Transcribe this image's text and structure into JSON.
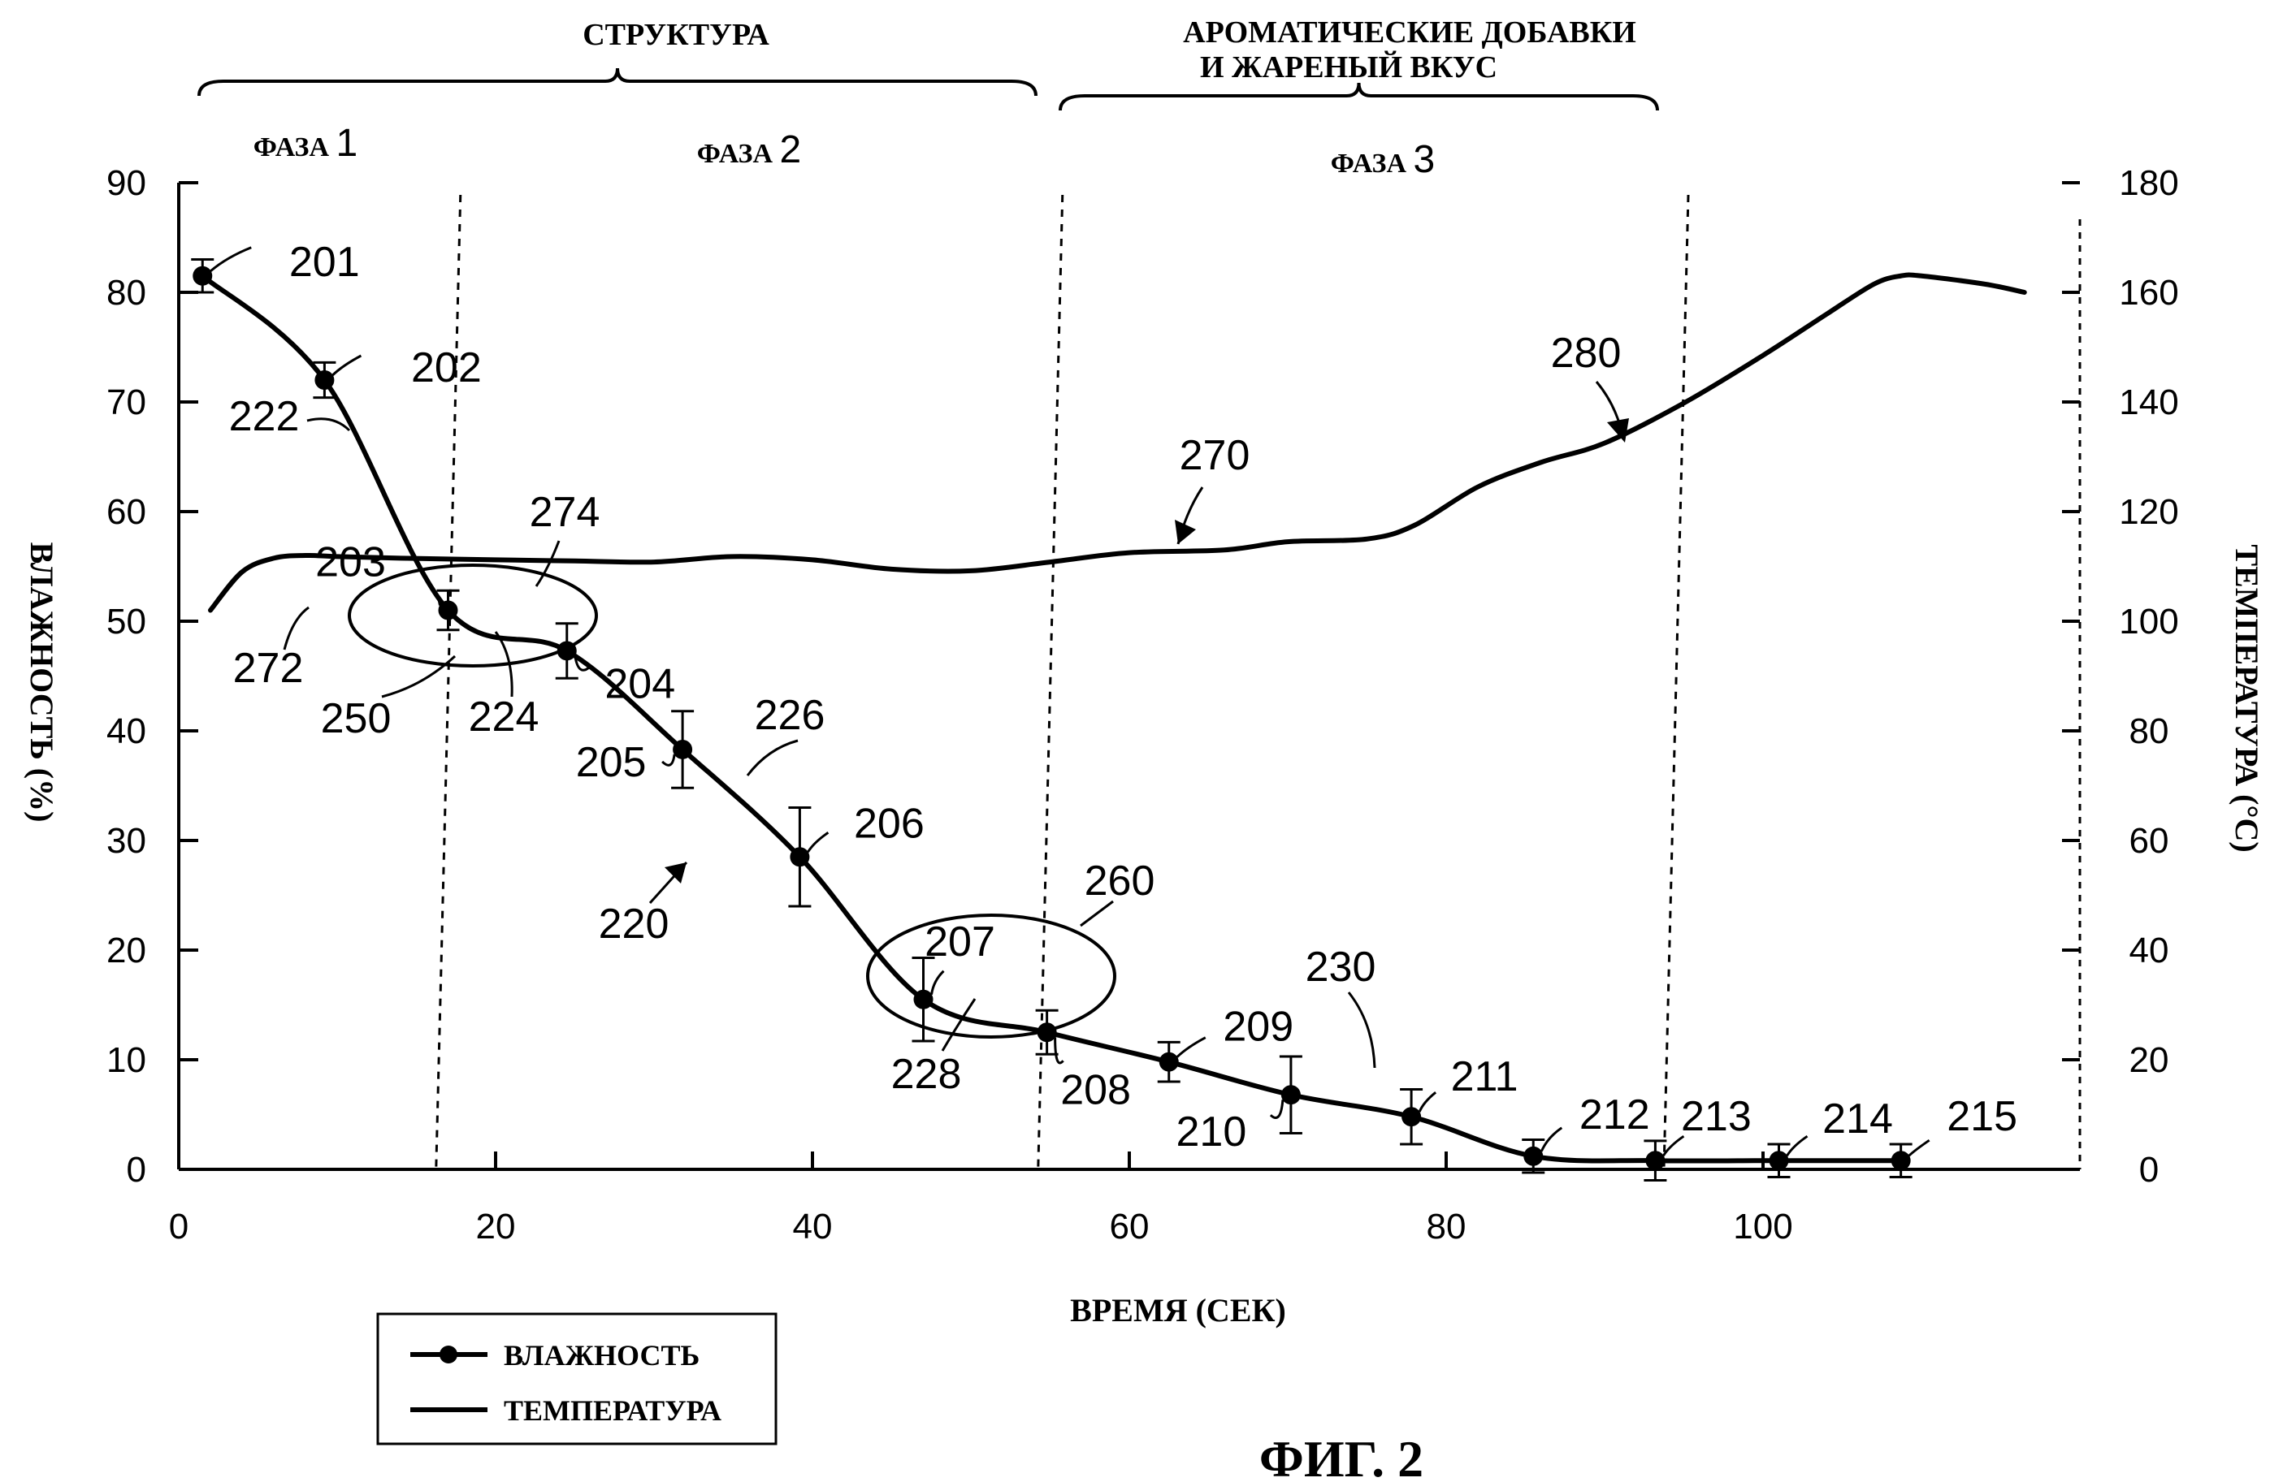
{
  "chart_data": {
    "type": "line",
    "title": "",
    "header_labels": [
      "СТРУКТУРА",
      "АРОМАТИЧЕСКИЕ ДОБАВКИ",
      "И ЖАРЕНЫЙ ВКУС"
    ],
    "phase_labels": [
      {
        "word": "ФАЗА",
        "num": "1",
        "x": 8
      },
      {
        "word": "ФАЗА",
        "num": "2",
        "x": 36
      },
      {
        "word": "ФАЗА",
        "num": "3",
        "x": 76
      }
    ],
    "phase_boundaries": [
      16.5,
      54.5,
      94
    ],
    "xlabel": "ВРЕМЯ (СЕК)",
    "ylabel_left": "ВЛАЖНОСТЬ (%)",
    "ylabel_right": "ТЕМПЕРАТУРА (°С)",
    "xlim": [
      0,
      120
    ],
    "ylim_left": [
      0,
      90
    ],
    "ylim_right": [
      0,
      180
    ],
    "x_ticks": [
      "0",
      "20",
      "40",
      "60",
      "80",
      "100"
    ],
    "y_left_ticks": [
      "0",
      "10",
      "20",
      "30",
      "40",
      "50",
      "60",
      "70",
      "80",
      "90"
    ],
    "y_right_ticks": [
      "0",
      "20",
      "40",
      "60",
      "80",
      "100",
      "120",
      "140",
      "160",
      "180"
    ],
    "grid": false,
    "legend_position": "bottom-left",
    "series": [
      {
        "name": "ВЛАЖНОСТЬ",
        "axis": "left",
        "marker": "circle",
        "points": [
          {
            "x": 1.5,
            "y": 81.5,
            "err": 1.5,
            "label": "201"
          },
          {
            "x": 9.2,
            "y": 72.0,
            "err": 1.6,
            "label": "202"
          },
          {
            "x": 17.0,
            "y": 51.0,
            "err": 1.8,
            "label": "203"
          },
          {
            "x": 24.5,
            "y": 47.3,
            "err": 2.5,
            "label": "204"
          },
          {
            "x": 31.8,
            "y": 38.3,
            "err": 3.5,
            "label": "205"
          },
          {
            "x": 39.2,
            "y": 28.5,
            "err": 4.5,
            "label": "206"
          },
          {
            "x": 47.0,
            "y": 15.5,
            "err": 3.8,
            "label": "207"
          },
          {
            "x": 54.8,
            "y": 12.5,
            "err": 2.0,
            "label": "208"
          },
          {
            "x": 62.5,
            "y": 9.8,
            "err": 1.8,
            "label": "209"
          },
          {
            "x": 70.2,
            "y": 6.8,
            "err": 3.5,
            "label": "210"
          },
          {
            "x": 77.8,
            "y": 4.8,
            "err": 2.5,
            "label": "211"
          },
          {
            "x": 85.5,
            "y": 1.2,
            "err": 1.5,
            "label": "212"
          },
          {
            "x": 93.2,
            "y": 0.8,
            "err": 1.8,
            "label": "213"
          },
          {
            "x": 101.0,
            "y": 0.8,
            "err": 1.5,
            "label": "214"
          },
          {
            "x": 108.7,
            "y": 0.8,
            "err": 1.5,
            "label": "215"
          }
        ]
      },
      {
        "name": "ТЕМПЕРАТУРА",
        "axis": "right",
        "marker": "none",
        "x": [
          2,
          4,
          6,
          8,
          10,
          14,
          20,
          25,
          30,
          35,
          40,
          45,
          50,
          55,
          60,
          66,
          70,
          75,
          78,
          82,
          86,
          90,
          95,
          100,
          104,
          107,
          108.7,
          110,
          114,
          116.5
        ],
        "y": [
          102,
          109,
          111.5,
          112,
          111.8,
          111.5,
          111.2,
          111,
          110.8,
          111.8,
          111.2,
          109.5,
          109.2,
          110.8,
          112.5,
          113,
          114.5,
          115,
          117.5,
          124.5,
          129,
          132.5,
          139.8,
          148.5,
          156,
          161.5,
          163,
          163,
          161.5,
          160
        ]
      }
    ],
    "annotations": [
      {
        "text": "220",
        "kind": "arrow"
      },
      {
        "text": "222",
        "kind": "leader"
      },
      {
        "text": "224",
        "kind": "leader"
      },
      {
        "text": "226",
        "kind": "leader"
      },
      {
        "text": "228",
        "kind": "leader"
      },
      {
        "text": "230",
        "kind": "leader"
      },
      {
        "text": "250",
        "kind": "ellipse"
      },
      {
        "text": "260",
        "kind": "ellipse"
      },
      {
        "text": "270",
        "kind": "arrow"
      },
      {
        "text": "272",
        "kind": "leader"
      },
      {
        "text": "274",
        "kind": "leader"
      },
      {
        "text": "280",
        "kind": "arrow"
      }
    ],
    "legend": [
      {
        "label": "ВЛАЖНОСТЬ",
        "marker": "circle"
      },
      {
        "label": "ТЕМПЕРАТУРА",
        "marker": "none"
      }
    ],
    "caption": "ФИГ. 2"
  }
}
